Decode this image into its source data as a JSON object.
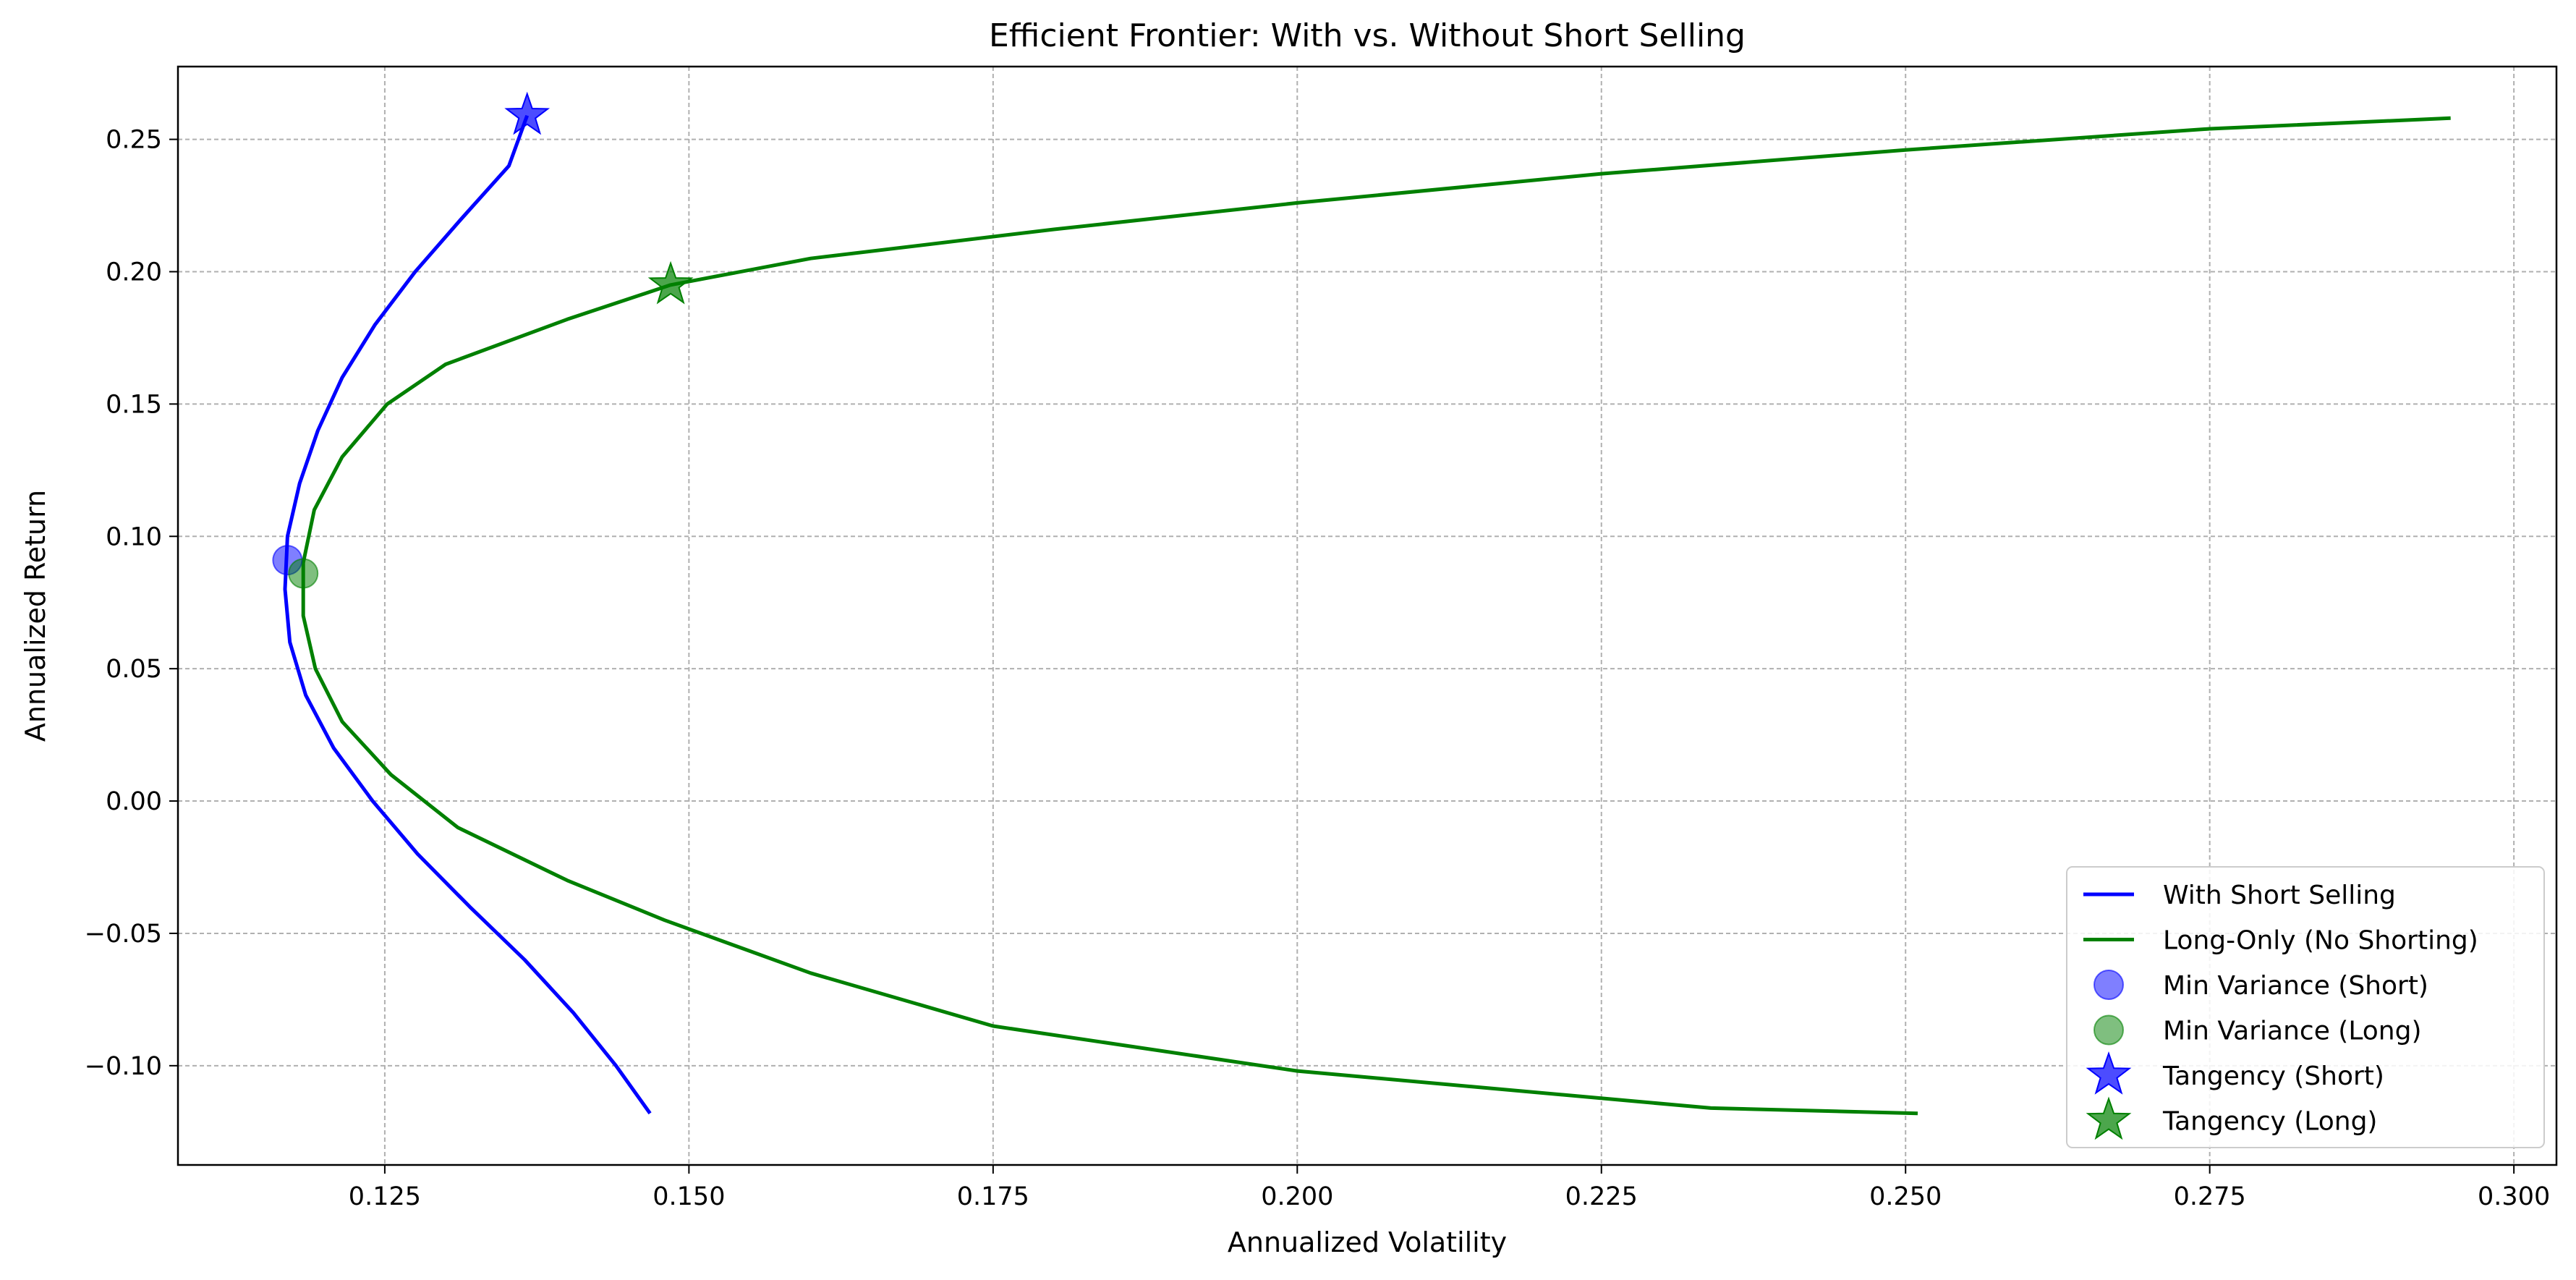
{
  "chart_data": {
    "type": "line",
    "title": "Efficient Frontier: With vs. Without Short Selling",
    "xlabel": "Annualized Volatility",
    "ylabel": "Annualized Return",
    "xlim": [
      0.108,
      0.3035
    ],
    "ylim": [
      -0.1375,
      0.2775
    ],
    "xticks": [
      0.125,
      0.15,
      0.175,
      0.2,
      0.225,
      0.25,
      0.275,
      0.3
    ],
    "xtick_labels": [
      "0.125",
      "0.150",
      "0.175",
      "0.200",
      "0.225",
      "0.250",
      "0.275",
      "0.300"
    ],
    "yticks": [
      -0.1,
      -0.05,
      0.0,
      0.05,
      0.1,
      0.15,
      0.2,
      0.25
    ],
    "ytick_labels": [
      "−0.10",
      "−0.05",
      "0.00",
      "0.05",
      "0.10",
      "0.15",
      "0.20",
      "0.25"
    ],
    "grid": true,
    "legend_position": "lower right",
    "series": [
      {
        "name": "With Short Selling",
        "kind": "line",
        "color": "#0000ff",
        "points": [
          [
            0.1468,
            -0.118
          ],
          [
            0.144,
            -0.1
          ],
          [
            0.1405,
            -0.08
          ],
          [
            0.1365,
            -0.06
          ],
          [
            0.132,
            -0.04
          ],
          [
            0.1277,
            -0.02
          ],
          [
            0.124,
            0.0
          ],
          [
            0.1208,
            0.02
          ],
          [
            0.1185,
            0.04
          ],
          [
            0.1172,
            0.06
          ],
          [
            0.1168,
            0.08
          ],
          [
            0.117,
            0.1
          ],
          [
            0.118,
            0.12
          ],
          [
            0.1195,
            0.14
          ],
          [
            0.1215,
            0.16
          ],
          [
            0.1242,
            0.18
          ],
          [
            0.1275,
            0.2
          ],
          [
            0.1313,
            0.22
          ],
          [
            0.1352,
            0.24
          ],
          [
            0.1367,
            0.259
          ]
        ]
      },
      {
        "name": "Long-Only (No Shorting)",
        "kind": "line",
        "color": "#008000",
        "points": [
          [
            0.251,
            -0.118
          ],
          [
            0.234,
            -0.116
          ],
          [
            0.2,
            -0.102
          ],
          [
            0.175,
            -0.085
          ],
          [
            0.16,
            -0.065
          ],
          [
            0.148,
            -0.045
          ],
          [
            0.14,
            -0.03
          ],
          [
            0.131,
            -0.01
          ],
          [
            0.1255,
            0.01
          ],
          [
            0.1215,
            0.03
          ],
          [
            0.1193,
            0.05
          ],
          [
            0.1183,
            0.07
          ],
          [
            0.1183,
            0.09
          ],
          [
            0.1192,
            0.11
          ],
          [
            0.1215,
            0.13
          ],
          [
            0.1252,
            0.15
          ],
          [
            0.13,
            0.165
          ],
          [
            0.14,
            0.182
          ],
          [
            0.1485,
            0.195
          ],
          [
            0.16,
            0.205
          ],
          [
            0.18,
            0.216
          ],
          [
            0.2,
            0.226
          ],
          [
            0.225,
            0.237
          ],
          [
            0.25,
            0.246
          ],
          [
            0.275,
            0.254
          ],
          [
            0.2948,
            0.258
          ]
        ]
      },
      {
        "name": "Min Variance (Short)",
        "kind": "circle",
        "color": "#0000ff",
        "x": 0.117,
        "y": 0.091
      },
      {
        "name": "Min Variance (Long)",
        "kind": "circle",
        "color": "#008000",
        "x": 0.1183,
        "y": 0.086
      },
      {
        "name": "Tangency (Short)",
        "kind": "star",
        "color": "#0000ff",
        "x": 0.1367,
        "y": 0.259
      },
      {
        "name": "Tangency (Long)",
        "kind": "star",
        "color": "#008000",
        "x": 0.1485,
        "y": 0.195
      }
    ]
  }
}
